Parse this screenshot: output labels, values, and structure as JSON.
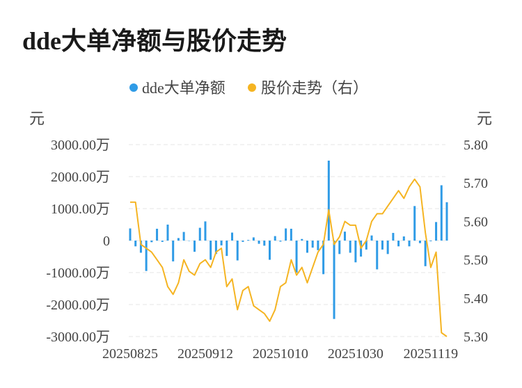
{
  "page": {
    "title": "dde大单净额与股价走势"
  },
  "colors": {
    "bar": "#2f9be6",
    "line": "#f5b422",
    "grid": "#e6e6e6",
    "text": "#444444"
  },
  "chart_data": {
    "type": "bar+line",
    "title": "dde大单净额与股价走势",
    "legend": {
      "position": "top-center",
      "items": [
        "dde大单净额",
        "股价走势（右）"
      ]
    },
    "y_left": {
      "unit_label": "元",
      "range": [
        -3000,
        3000
      ],
      "tick_labels": [
        "3000.00万",
        "2000.00万",
        "1000.00万",
        "0",
        "-1000.00万",
        "-2000.00万",
        "-3000.00万"
      ],
      "ticks": [
        3000,
        2000,
        1000,
        0,
        -1000,
        -2000,
        -3000
      ]
    },
    "y_right": {
      "unit_label": "元",
      "range": [
        5.3,
        5.8
      ],
      "tick_labels": [
        "5.80",
        "5.70",
        "5.60",
        "5.50",
        "5.40",
        "5.30"
      ],
      "ticks": [
        5.8,
        5.7,
        5.6,
        5.5,
        5.4,
        5.3
      ]
    },
    "x_tick_labels": [
      {
        "label": "20250825",
        "index": 0
      },
      {
        "label": "20250912",
        "index": 14
      },
      {
        "label": "20251010",
        "index": 28
      },
      {
        "label": "20251030",
        "index": 42
      },
      {
        "label": "20251119",
        "index": 56
      }
    ],
    "grid": true,
    "series": [
      {
        "name": "dde大单净额",
        "type": "bar",
        "axis": "left",
        "unit": "万元",
        "values": [
          380,
          -180,
          -380,
          -950,
          -50,
          370,
          -40,
          500,
          -650,
          80,
          270,
          0,
          -350,
          400,
          600,
          -600,
          -420,
          -150,
          -480,
          250,
          -620,
          -40,
          20,
          100,
          -100,
          -160,
          -600,
          140,
          -30,
          380,
          370,
          -1000,
          50,
          -380,
          -220,
          -300,
          -1050,
          2500,
          -2450,
          -420,
          280,
          -380,
          -680,
          -500,
          -280,
          160,
          -900,
          -280,
          -420,
          240,
          -180,
          130,
          -180,
          1080,
          -80,
          -800,
          -20,
          580,
          1730,
          1200
        ]
      },
      {
        "name": "股价走势（右）",
        "type": "line",
        "axis": "right",
        "unit": "元",
        "values": [
          5.65,
          5.65,
          5.54,
          5.53,
          5.52,
          5.5,
          5.48,
          5.43,
          5.41,
          5.44,
          5.5,
          5.47,
          5.46,
          5.49,
          5.5,
          5.48,
          5.52,
          5.53,
          5.43,
          5.45,
          5.37,
          5.42,
          5.43,
          5.38,
          5.37,
          5.36,
          5.34,
          5.37,
          5.43,
          5.44,
          5.5,
          5.46,
          5.48,
          5.44,
          5.48,
          5.52,
          5.54,
          5.63,
          5.54,
          5.56,
          5.6,
          5.59,
          5.59,
          5.53,
          5.55,
          5.6,
          5.62,
          5.62,
          5.64,
          5.66,
          5.68,
          5.66,
          5.69,
          5.71,
          5.69,
          5.57,
          5.48,
          5.52,
          5.31,
          5.3
        ]
      }
    ]
  }
}
